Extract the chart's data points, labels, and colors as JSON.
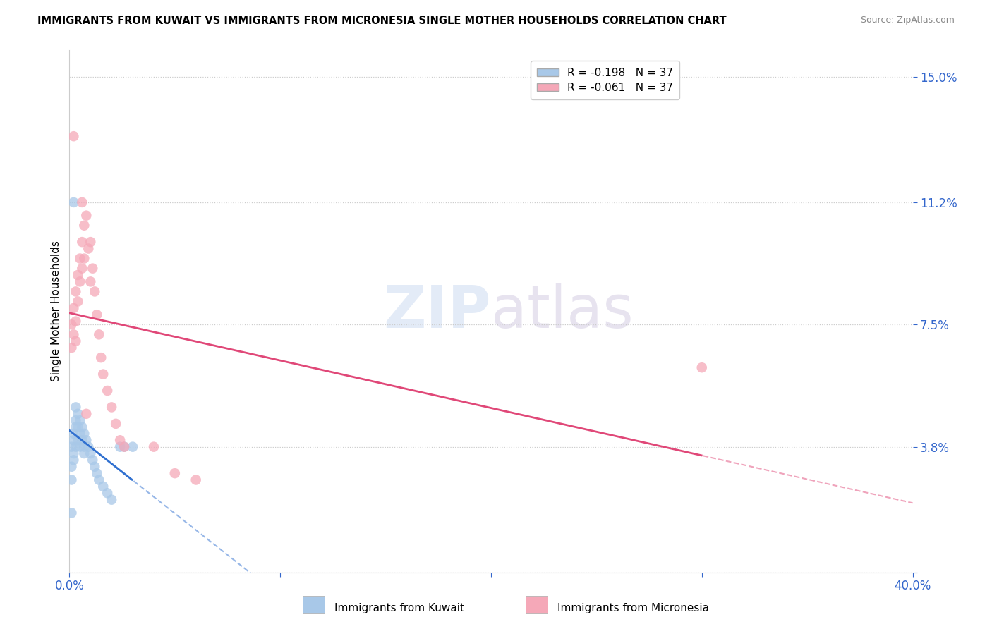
{
  "title": "IMMIGRANTS FROM KUWAIT VS IMMIGRANTS FROM MICRONESIA SINGLE MOTHER HOUSEHOLDS CORRELATION CHART",
  "source": "Source: ZipAtlas.com",
  "ylabel": "Single Mother Households",
  "ytick_labels": [
    "",
    "3.8%",
    "7.5%",
    "11.2%",
    "15.0%"
  ],
  "yticks": [
    0.0,
    0.038,
    0.075,
    0.112,
    0.15
  ],
  "xlim": [
    0.0,
    0.4
  ],
  "ylim": [
    0.0,
    0.158
  ],
  "legend_r_kuwait": "R = -0.198",
  "legend_n_kuwait": "N = 37",
  "legend_r_micronesia": "R = -0.061",
  "legend_n_micronesia": "N = 37",
  "kuwait_color": "#a8c8e8",
  "micronesia_color": "#f5a8b8",
  "kuwait_line_color": "#3070d0",
  "micronesia_line_color": "#e04878",
  "watermark_zip": "ZIP",
  "watermark_atlas": "atlas",
  "kuwait_x": [
    0.001,
    0.001,
    0.001,
    0.002,
    0.002,
    0.002,
    0.002,
    0.003,
    0.003,
    0.003,
    0.003,
    0.004,
    0.004,
    0.004,
    0.005,
    0.005,
    0.005,
    0.006,
    0.006,
    0.007,
    0.007,
    0.007,
    0.008,
    0.009,
    0.01,
    0.011,
    0.012,
    0.013,
    0.014,
    0.016,
    0.018,
    0.02,
    0.024,
    0.026,
    0.03,
    0.002,
    0.001
  ],
  "kuwait_y": [
    0.038,
    0.032,
    0.028,
    0.042,
    0.04,
    0.036,
    0.034,
    0.05,
    0.046,
    0.044,
    0.038,
    0.048,
    0.044,
    0.04,
    0.046,
    0.042,
    0.038,
    0.044,
    0.04,
    0.042,
    0.038,
    0.036,
    0.04,
    0.038,
    0.036,
    0.034,
    0.032,
    0.03,
    0.028,
    0.026,
    0.024,
    0.022,
    0.038,
    0.038,
    0.038,
    0.112,
    0.018
  ],
  "micronesia_x": [
    0.001,
    0.001,
    0.002,
    0.002,
    0.003,
    0.003,
    0.003,
    0.004,
    0.004,
    0.005,
    0.005,
    0.006,
    0.006,
    0.007,
    0.007,
    0.008,
    0.009,
    0.01,
    0.01,
    0.011,
    0.012,
    0.013,
    0.014,
    0.015,
    0.016,
    0.018,
    0.02,
    0.022,
    0.024,
    0.026,
    0.04,
    0.05,
    0.06,
    0.3,
    0.002,
    0.008,
    0.006
  ],
  "micronesia_y": [
    0.075,
    0.068,
    0.08,
    0.072,
    0.085,
    0.076,
    0.07,
    0.09,
    0.082,
    0.095,
    0.088,
    0.1,
    0.092,
    0.105,
    0.095,
    0.108,
    0.098,
    0.1,
    0.088,
    0.092,
    0.085,
    0.078,
    0.072,
    0.065,
    0.06,
    0.055,
    0.05,
    0.045,
    0.04,
    0.038,
    0.038,
    0.03,
    0.028,
    0.062,
    0.132,
    0.048,
    0.112
  ]
}
